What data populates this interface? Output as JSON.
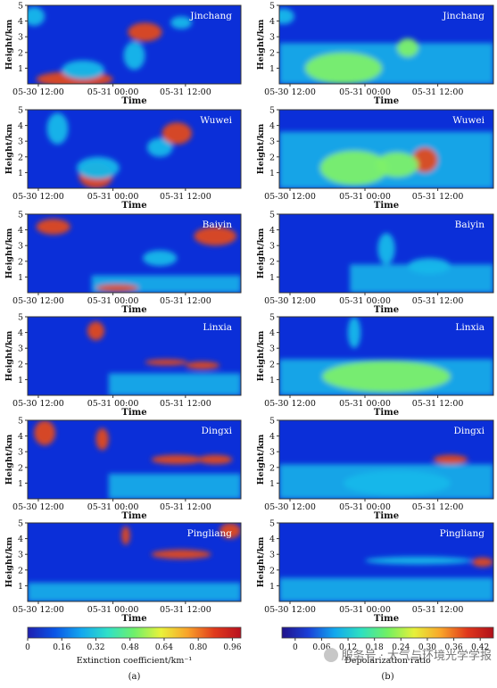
{
  "chart_data": [
    {
      "type": "heatmap",
      "panel": "a",
      "station": "Jinchang",
      "ylabel": "Height/km",
      "xlabel": "Time",
      "x_ticks": [
        "05-30 12:00",
        "05-31 00:00",
        "05-31 12:00"
      ],
      "y_ticks": [
        "1",
        "2",
        "3",
        "4",
        "5"
      ],
      "ylim": [
        0,
        5
      ]
    },
    {
      "type": "heatmap",
      "panel": "b",
      "station": "Jinchang",
      "ylabel": "Height/km",
      "xlabel": "Time",
      "x_ticks": [
        "05-30 12:00",
        "05-31 00:00",
        "05-31 12:00"
      ],
      "y_ticks": [
        "1",
        "2",
        "3",
        "4",
        "5"
      ],
      "ylim": [
        0,
        5
      ]
    },
    {
      "type": "heatmap",
      "panel": "a",
      "station": "Wuwei",
      "ylabel": "Height/km",
      "xlabel": "Time",
      "x_ticks": [
        "05-30 12:00",
        "05-31 00:00",
        "05-31 12:00"
      ],
      "y_ticks": [
        "1",
        "2",
        "3",
        "4",
        "5"
      ],
      "ylim": [
        0,
        5
      ]
    },
    {
      "type": "heatmap",
      "panel": "b",
      "station": "Wuwei",
      "ylabel": "Height/km",
      "xlabel": "Time",
      "x_ticks": [
        "05-30 12:00",
        "05-31 00:00",
        "05-31 12:00"
      ],
      "y_ticks": [
        "1",
        "2",
        "3",
        "4",
        "5"
      ],
      "ylim": [
        0,
        5
      ]
    },
    {
      "type": "heatmap",
      "panel": "a",
      "station": "Baiyin",
      "ylabel": "Height/km",
      "xlabel": "Time",
      "x_ticks": [
        "05-30 12:00",
        "05-31 00:00",
        "05-31 12:00"
      ],
      "y_ticks": [
        "1",
        "2",
        "3",
        "4",
        "5"
      ],
      "ylim": [
        0,
        5
      ]
    },
    {
      "type": "heatmap",
      "panel": "b",
      "station": "Baiyin",
      "ylabel": "Height/km",
      "xlabel": "Time",
      "x_ticks": [
        "05-30 12:00",
        "05-31 00:00",
        "05-31 12:00"
      ],
      "y_ticks": [
        "1",
        "2",
        "3",
        "4",
        "5"
      ],
      "ylim": [
        0,
        5
      ]
    },
    {
      "type": "heatmap",
      "panel": "a",
      "station": "Linxia",
      "ylabel": "Height/km",
      "xlabel": "Time",
      "x_ticks": [
        "05-30 12:00",
        "05-31 00:00",
        "05-31 12:00"
      ],
      "y_ticks": [
        "1",
        "2",
        "3",
        "4",
        "5"
      ],
      "ylim": [
        0,
        5
      ]
    },
    {
      "type": "heatmap",
      "panel": "b",
      "station": "Linxia",
      "ylabel": "Height/km",
      "xlabel": "Time",
      "x_ticks": [
        "05-30 12:00",
        "05-31 00:00",
        "05-31 12:00"
      ],
      "y_ticks": [
        "1",
        "2",
        "3",
        "4",
        "5"
      ],
      "ylim": [
        0,
        5
      ]
    },
    {
      "type": "heatmap",
      "panel": "a",
      "station": "Dingxi",
      "ylabel": "Height/km",
      "xlabel": "Time",
      "x_ticks": [
        "05-30 12:00",
        "05-31 00:00",
        "05-31 12:00"
      ],
      "y_ticks": [
        "1",
        "2",
        "3",
        "4",
        "5"
      ],
      "ylim": [
        0,
        5
      ]
    },
    {
      "type": "heatmap",
      "panel": "b",
      "station": "Dingxi",
      "ylabel": "Height/km",
      "xlabel": "Time",
      "x_ticks": [
        "05-30 12:00",
        "05-31 00:00",
        "05-31 12:00"
      ],
      "y_ticks": [
        "1",
        "2",
        "3",
        "4",
        "5"
      ],
      "ylim": [
        0,
        5
      ]
    },
    {
      "type": "heatmap",
      "panel": "a",
      "station": "Pingliang",
      "ylabel": "Height/km",
      "xlabel": "Time",
      "x_ticks": [
        "05-30 12:00",
        "05-31 00:00",
        "05-31 12:00"
      ],
      "y_ticks": [
        "1",
        "2",
        "3",
        "4",
        "5"
      ],
      "ylim": [
        0,
        5
      ]
    },
    {
      "type": "heatmap",
      "panel": "b",
      "station": "Pingliang",
      "ylabel": "Height/km",
      "xlabel": "Time",
      "x_ticks": [
        "05-30 12:00",
        "05-31 00:00",
        "05-31 12:00"
      ],
      "y_ticks": [
        "1",
        "2",
        "3",
        "4",
        "5"
      ],
      "ylim": [
        0,
        5
      ]
    }
  ],
  "colorbars": {
    "a": {
      "label": "Extinction coefficient/km⁻¹",
      "ticks": [
        "0",
        "0.16",
        "0.32",
        "0.48",
        "0.64",
        "0.80",
        "0.96"
      ],
      "range": [
        0,
        1.0
      ],
      "colors": [
        "#1f1fb0",
        "#0a54e6",
        "#13a6ef",
        "#2fe0c8",
        "#6ff06a",
        "#e9f23a",
        "#f9a22a",
        "#e03a1c",
        "#b8101e"
      ]
    },
    "b": {
      "label": "Depolarization ratio",
      "ticks": [
        "0",
        "0.06",
        "0.12",
        "0.18",
        "0.24",
        "0.30",
        "0.36",
        "0.42"
      ],
      "range": [
        -0.03,
        0.45
      ],
      "colors": [
        "#20128a",
        "#1a40d8",
        "#12a8ee",
        "#2ee0c0",
        "#72f062",
        "#e6f03a",
        "#f9a52a",
        "#e0381c",
        "#b0101a"
      ]
    }
  },
  "panel_labels": [
    "(a)",
    "(b)"
  ],
  "watermark": "服务号 · 大气与环境光学学报",
  "colors": {
    "background_field": "#0b2fd8",
    "low": "#15b8ea",
    "mid": "#7df06a",
    "high": "#e04a1c",
    "max": "#b8101e"
  }
}
